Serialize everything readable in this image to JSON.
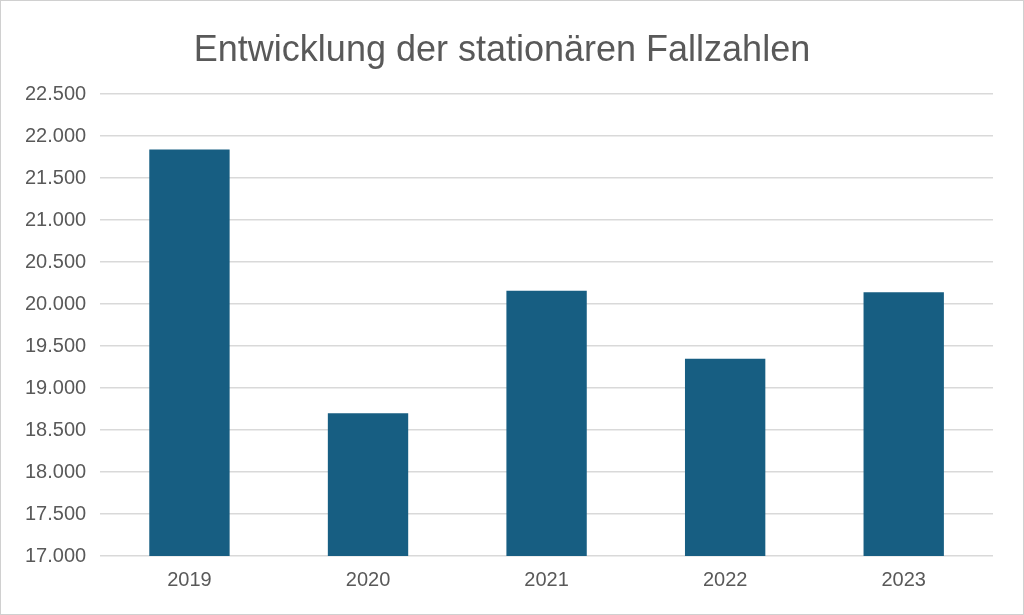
{
  "chart_data": {
    "type": "bar",
    "title": "Entwicklung der stationären Fallzahlen",
    "categories": [
      "2019",
      "2020",
      "2021",
      "2022",
      "2023"
    ],
    "values": [
      21840,
      18700,
      20160,
      19350,
      20140
    ],
    "color": "#175e82",
    "ylim": [
      17000,
      22500
    ],
    "yticks": [
      {
        "value": 17000,
        "label": "17.000"
      },
      {
        "value": 17500,
        "label": "17.500"
      },
      {
        "value": 18000,
        "label": "18.000"
      },
      {
        "value": 18500,
        "label": "18.500"
      },
      {
        "value": 19000,
        "label": "19.000"
      },
      {
        "value": 19500,
        "label": "19.500"
      },
      {
        "value": 20000,
        "label": "20.000"
      },
      {
        "value": 20500,
        "label": "20.500"
      },
      {
        "value": 21000,
        "label": "21.000"
      },
      {
        "value": 21500,
        "label": "21.500"
      },
      {
        "value": 22000,
        "label": "22.000"
      },
      {
        "value": 22500,
        "label": "22.500"
      }
    ],
    "grid": "y",
    "legend": false
  }
}
